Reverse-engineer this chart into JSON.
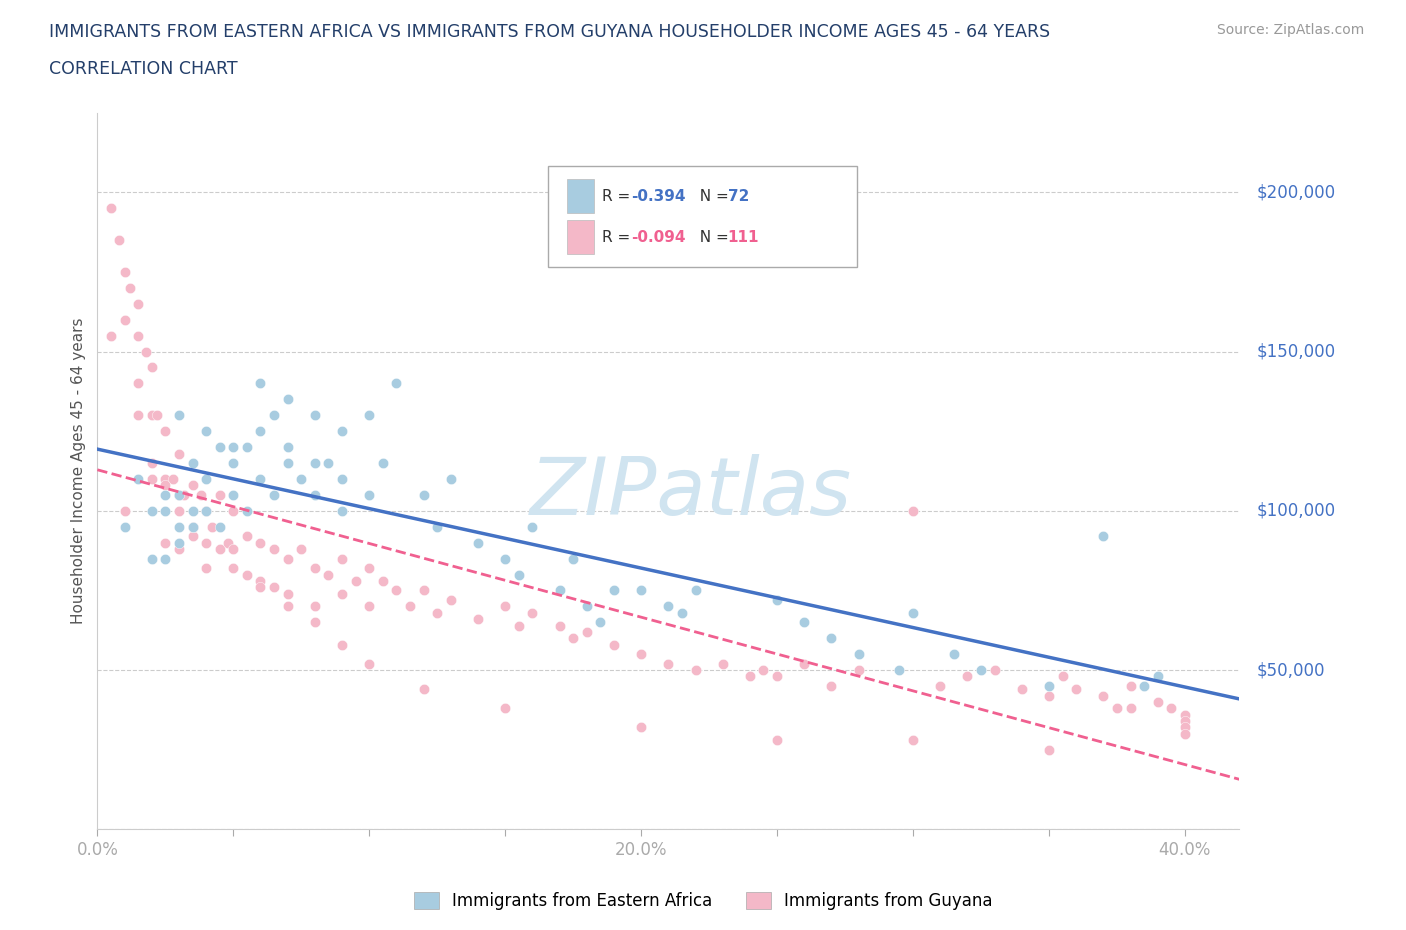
{
  "title_line1": "IMMIGRANTS FROM EASTERN AFRICA VS IMMIGRANTS FROM GUYANA HOUSEHOLDER INCOME AGES 45 - 64 YEARS",
  "title_line2": "CORRELATION CHART",
  "source": "Source: ZipAtlas.com",
  "ylabel": "Householder Income Ages 45 - 64 years",
  "xlim": [
    0.0,
    0.42
  ],
  "ylim": [
    0,
    225000
  ],
  "xticks": [
    0.0,
    0.05,
    0.1,
    0.15,
    0.2,
    0.25,
    0.3,
    0.35,
    0.4
  ],
  "xticklabels": [
    "0.0%",
    "",
    "",
    "",
    "20.0%",
    "",
    "",
    "",
    "40.0%"
  ],
  "yticks": [
    0,
    50000,
    100000,
    150000,
    200000
  ],
  "yticklabels": [
    "",
    "$50,000",
    "$100,000",
    "$150,000",
    "$200,000"
  ],
  "color_blue": "#a8cce0",
  "color_pink": "#f4b8c8",
  "color_blue_line": "#4472c4",
  "color_pink_line": "#f06090",
  "color_title": "#243f6a",
  "color_axis_label": "#4472c4",
  "color_watermark": "#d0e4f0",
  "R_blue": -0.394,
  "N_blue": 72,
  "R_pink": -0.094,
  "N_pink": 111,
  "legend_label_blue": "Immigrants from Eastern Africa",
  "legend_label_pink": "Immigrants from Guyana",
  "blue_scatter_x": [
    0.01,
    0.015,
    0.02,
    0.02,
    0.025,
    0.025,
    0.03,
    0.03,
    0.03,
    0.035,
    0.035,
    0.04,
    0.04,
    0.045,
    0.045,
    0.05,
    0.05,
    0.055,
    0.055,
    0.06,
    0.06,
    0.065,
    0.065,
    0.07,
    0.07,
    0.075,
    0.08,
    0.08,
    0.085,
    0.09,
    0.09,
    0.1,
    0.105,
    0.11,
    0.12,
    0.125,
    0.13,
    0.14,
    0.155,
    0.16,
    0.17,
    0.175,
    0.18,
    0.185,
    0.19,
    0.2,
    0.21,
    0.215,
    0.22,
    0.25,
    0.26,
    0.27,
    0.28,
    0.295,
    0.3,
    0.315,
    0.325,
    0.35,
    0.37,
    0.025,
    0.03,
    0.035,
    0.04,
    0.05,
    0.06,
    0.07,
    0.08,
    0.09,
    0.1,
    0.15,
    0.385,
    0.39
  ],
  "blue_scatter_y": [
    95000,
    110000,
    100000,
    85000,
    105000,
    85000,
    130000,
    105000,
    90000,
    115000,
    95000,
    125000,
    100000,
    120000,
    95000,
    115000,
    105000,
    120000,
    100000,
    140000,
    110000,
    130000,
    105000,
    135000,
    115000,
    110000,
    130000,
    105000,
    115000,
    125000,
    100000,
    130000,
    115000,
    140000,
    105000,
    95000,
    110000,
    90000,
    80000,
    95000,
    75000,
    85000,
    70000,
    65000,
    75000,
    75000,
    70000,
    68000,
    75000,
    72000,
    65000,
    60000,
    55000,
    50000,
    68000,
    55000,
    50000,
    45000,
    92000,
    100000,
    95000,
    100000,
    110000,
    120000,
    125000,
    120000,
    115000,
    110000,
    105000,
    85000,
    45000,
    48000
  ],
  "pink_scatter_x": [
    0.005,
    0.008,
    0.01,
    0.01,
    0.012,
    0.015,
    0.015,
    0.015,
    0.018,
    0.02,
    0.02,
    0.02,
    0.022,
    0.025,
    0.025,
    0.025,
    0.028,
    0.03,
    0.03,
    0.03,
    0.032,
    0.035,
    0.035,
    0.038,
    0.04,
    0.04,
    0.042,
    0.045,
    0.045,
    0.048,
    0.05,
    0.05,
    0.055,
    0.055,
    0.06,
    0.06,
    0.065,
    0.065,
    0.07,
    0.07,
    0.075,
    0.08,
    0.08,
    0.085,
    0.09,
    0.09,
    0.095,
    0.1,
    0.1,
    0.105,
    0.11,
    0.115,
    0.12,
    0.125,
    0.13,
    0.14,
    0.15,
    0.155,
    0.16,
    0.17,
    0.175,
    0.18,
    0.19,
    0.2,
    0.21,
    0.22,
    0.23,
    0.24,
    0.245,
    0.25,
    0.26,
    0.27,
    0.28,
    0.3,
    0.31,
    0.32,
    0.33,
    0.34,
    0.35,
    0.355,
    0.36,
    0.37,
    0.375,
    0.38,
    0.39,
    0.395,
    0.005,
    0.01,
    0.015,
    0.02,
    0.025,
    0.03,
    0.035,
    0.04,
    0.05,
    0.06,
    0.07,
    0.08,
    0.09,
    0.1,
    0.12,
    0.15,
    0.2,
    0.25,
    0.3,
    0.35,
    0.38,
    0.4,
    0.4,
    0.4,
    0.4
  ],
  "pink_scatter_y": [
    195000,
    185000,
    175000,
    160000,
    170000,
    165000,
    155000,
    140000,
    150000,
    145000,
    130000,
    110000,
    130000,
    125000,
    110000,
    90000,
    110000,
    118000,
    105000,
    88000,
    105000,
    108000,
    92000,
    105000,
    100000,
    82000,
    95000,
    105000,
    88000,
    90000,
    100000,
    88000,
    92000,
    80000,
    90000,
    78000,
    88000,
    76000,
    85000,
    74000,
    88000,
    82000,
    70000,
    80000,
    85000,
    74000,
    78000,
    82000,
    70000,
    78000,
    75000,
    70000,
    75000,
    68000,
    72000,
    66000,
    70000,
    64000,
    68000,
    64000,
    60000,
    62000,
    58000,
    55000,
    52000,
    50000,
    52000,
    48000,
    50000,
    48000,
    52000,
    45000,
    50000,
    100000,
    45000,
    48000,
    50000,
    44000,
    42000,
    48000,
    44000,
    42000,
    38000,
    45000,
    40000,
    38000,
    155000,
    100000,
    130000,
    115000,
    108000,
    100000,
    95000,
    90000,
    82000,
    76000,
    70000,
    65000,
    58000,
    52000,
    44000,
    38000,
    32000,
    28000,
    28000,
    25000,
    38000,
    36000,
    34000,
    32000,
    30000
  ]
}
